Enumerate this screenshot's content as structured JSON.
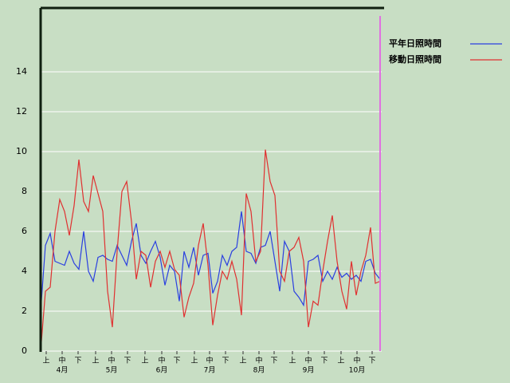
{
  "chart_data": {
    "type": "line",
    "x": [
      0,
      3,
      6,
      9,
      12,
      15,
      18,
      21,
      24,
      27,
      30,
      33,
      36,
      39,
      42,
      45,
      48,
      51,
      54,
      57,
      60,
      63,
      66,
      69,
      72,
      75,
      78,
      81,
      84,
      87,
      90,
      93,
      96,
      99,
      102,
      105,
      108,
      111,
      114,
      117,
      120,
      123,
      126,
      129,
      132,
      135,
      138,
      141,
      144,
      147,
      150,
      153,
      156,
      159,
      162,
      165,
      168,
      171,
      174,
      177,
      180,
      183,
      186,
      189,
      192,
      195,
      198,
      201,
      204,
      207,
      210,
      213
    ],
    "series": [
      {
        "name": "平年日照時間",
        "color": "#2a3fe0",
        "values": [
          2,
          5.3,
          5.9,
          4.5,
          4.4,
          4.3,
          5.0,
          4.4,
          4.1,
          6.0,
          4.0,
          3.5,
          4.7,
          4.8,
          4.6,
          4.5,
          5.3,
          4.8,
          4.3,
          5.5,
          6.4,
          4.8,
          4.4,
          5.0,
          5.5,
          4.7,
          3.3,
          4.3,
          4.0,
          2.5,
          5.0,
          4.2,
          5.2,
          3.8,
          4.8,
          4.9,
          2.9,
          3.5,
          4.8,
          4.3,
          5.0,
          5.2,
          7.0,
          5.0,
          4.9,
          4.4,
          5.2,
          5.3,
          6.0,
          4.5,
          3.0,
          5.5,
          5.0,
          3.0,
          2.7,
          2.3,
          4.5,
          4.6,
          4.8,
          3.5,
          4.0,
          3.6,
          4.2,
          3.7,
          3.9,
          3.6,
          3.8,
          3.5,
          4.5,
          4.6,
          3.9,
          3.6
        ]
      },
      {
        "name": "移動日照時間",
        "color": "#e03030",
        "values": [
          0,
          3.0,
          3.2,
          6.0,
          7.6,
          7.0,
          5.8,
          7.3,
          9.6,
          7.5,
          7.0,
          8.8,
          7.9,
          7.0,
          3.0,
          1.2,
          5.0,
          8.0,
          8.5,
          6.5,
          3.6,
          5.0,
          4.8,
          3.2,
          4.5,
          5.0,
          4.2,
          5.0,
          4.1,
          3.8,
          1.7,
          2.7,
          3.4,
          5.3,
          6.4,
          4.3,
          1.3,
          2.8,
          4.0,
          3.6,
          4.5,
          3.6,
          1.8,
          7.9,
          7.0,
          4.5,
          5.0,
          10.1,
          8.5,
          7.8,
          4.0,
          3.5,
          5.0,
          5.2,
          5.7,
          4.5,
          1.2,
          2.5,
          2.3,
          4.0,
          5.5,
          6.8,
          4.5,
          3.0,
          2.1,
          4.5,
          2.8,
          4.0,
          4.8,
          6.2,
          3.4,
          3.5
        ]
      }
    ],
    "xlim": [
      0,
      214
    ],
    "xticks": [
      {
        "value": 3.5,
        "label": "上"
      },
      {
        "value": 13.5,
        "label": "中"
      },
      {
        "value": 23.5,
        "label": "下"
      },
      {
        "value": 34.5,
        "label": "上"
      },
      {
        "value": 44.5,
        "label": "中"
      },
      {
        "value": 54.5,
        "label": "下"
      },
      {
        "value": 65.5,
        "label": "上"
      },
      {
        "value": 76,
        "label": "中"
      },
      {
        "value": 85.5,
        "label": "下"
      },
      {
        "value": 96.5,
        "label": "上"
      },
      {
        "value": 106,
        "label": "中"
      },
      {
        "value": 116,
        "label": "下"
      },
      {
        "value": 127,
        "label": "上"
      },
      {
        "value": 137,
        "label": "中"
      },
      {
        "value": 146.5,
        "label": "下"
      },
      {
        "value": 158,
        "label": "上"
      },
      {
        "value": 168,
        "label": "中"
      },
      {
        "value": 178,
        "label": "下"
      },
      {
        "value": 188.5,
        "label": "上"
      },
      {
        "value": 198.5,
        "label": "中"
      },
      {
        "value": 208,
        "label": "下"
      }
    ],
    "month_labels": [
      {
        "value": 13.5,
        "label": "4月"
      },
      {
        "value": 44.5,
        "label": "5月"
      },
      {
        "value": 76,
        "label": "6月"
      },
      {
        "value": 106,
        "label": "7月"
      },
      {
        "value": 137,
        "label": "8月"
      },
      {
        "value": 168,
        "label": "9月"
      },
      {
        "value": 198.5,
        "label": "10月"
      }
    ],
    "ylim": [
      0,
      17.2
    ],
    "yticks": [
      0,
      2,
      4,
      6,
      8,
      10,
      12,
      14
    ],
    "grid": true
  }
}
